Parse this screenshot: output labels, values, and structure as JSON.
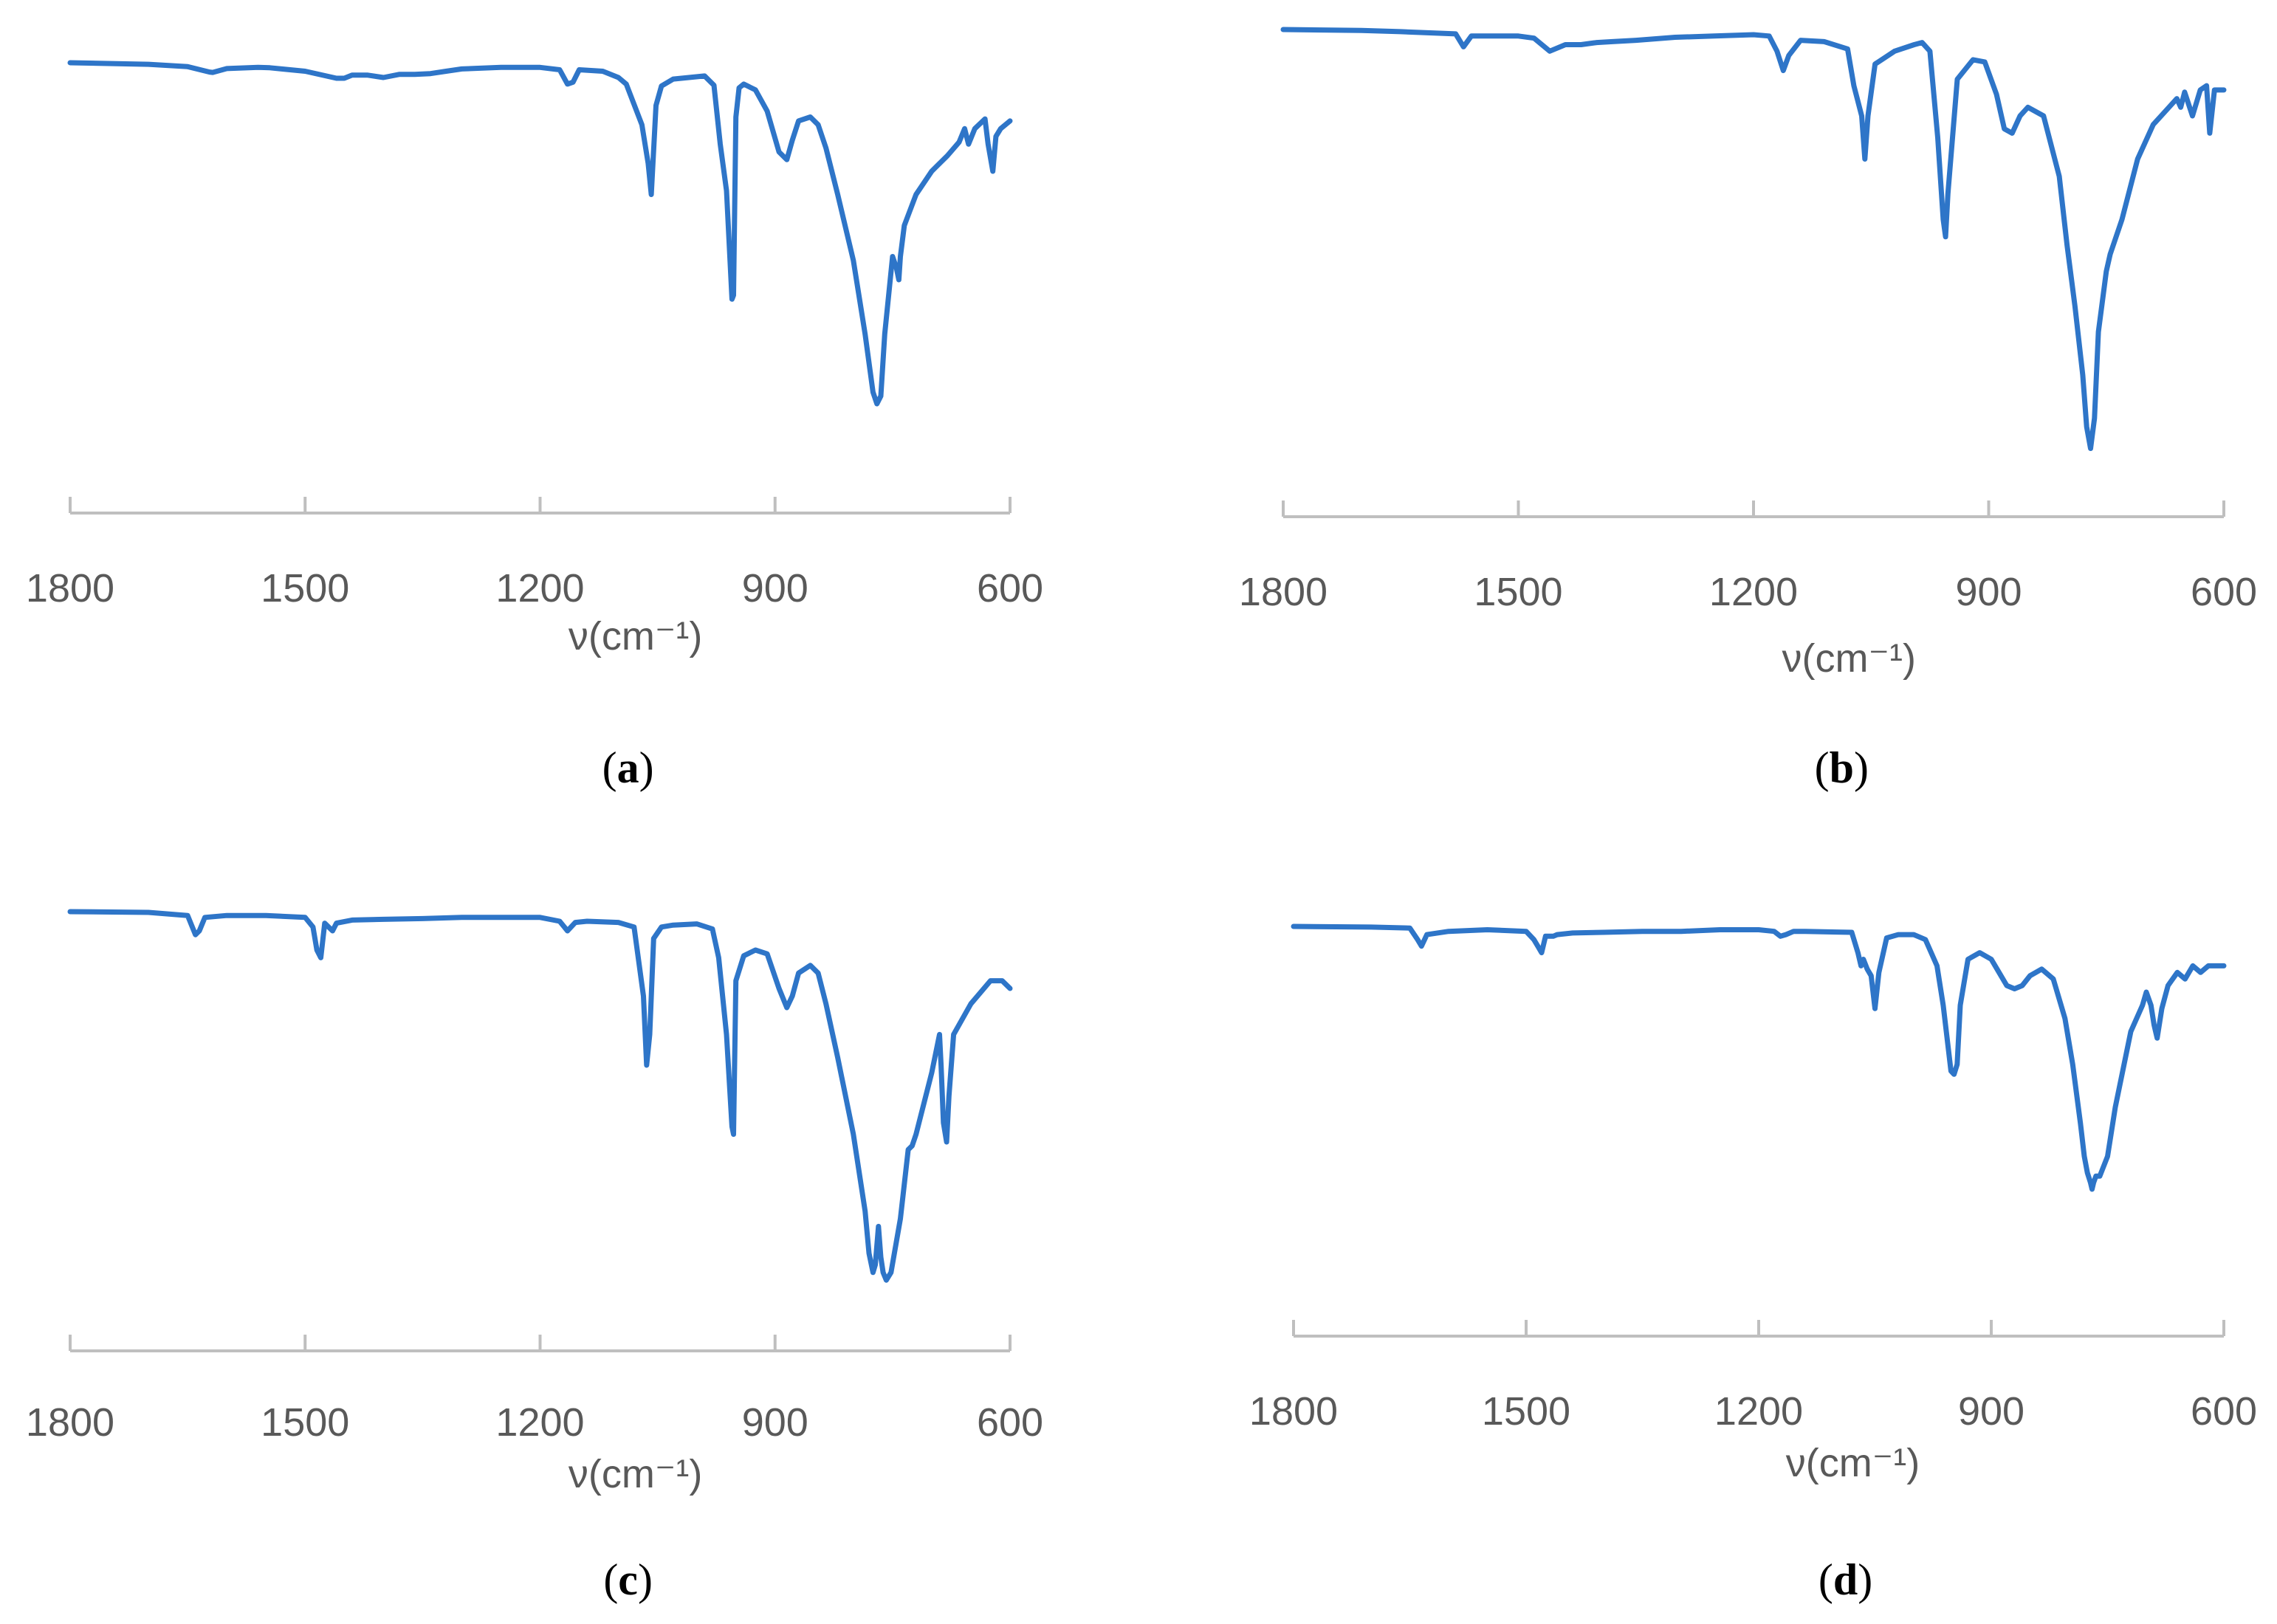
{
  "chart_data": [
    {
      "type": "line",
      "panel_label": "a",
      "xlabel": "ν(cm⁻¹)",
      "xlim": [
        1800,
        600
      ],
      "x_reversed": true,
      "xticks": [
        "1800",
        "1500",
        "1200",
        "900",
        "600"
      ],
      "ylabel": "",
      "grid": false,
      "color": "#2E75C8",
      "series": [
        {
          "x": [
            1800,
            1700,
            1650,
            1622,
            1618,
            1600,
            1560,
            1545,
            1530,
            1500,
            1460,
            1450,
            1440,
            1420,
            1400,
            1380,
            1360,
            1340,
            1320,
            1300,
            1250,
            1200,
            1175,
            1165,
            1158,
            1150,
            1120,
            1100,
            1090,
            1070,
            1062,
            1058,
            1052,
            1045,
            1030,
            1010,
            990,
            978,
            970,
            962,
            955,
            953,
            950,
            946,
            940,
            925,
            910,
            895,
            885,
            878,
            870,
            855,
            845,
            835,
            820,
            800,
            785,
            775,
            770,
            765,
            760,
            750,
            745,
            742,
            740,
            735,
            720,
            700,
            680,
            665,
            658,
            653,
            645,
            632,
            628,
            622,
            618,
            612,
            600
          ],
          "y": [
            1.0,
            0.996,
            0.99,
            0.976,
            0.975,
            0.985,
            0.988,
            0.987,
            0.984,
            0.978,
            0.96,
            0.96,
            0.968,
            0.968,
            0.962,
            0.97,
            0.97,
            0.972,
            0.978,
            0.984,
            0.988,
            0.988,
            0.982,
            0.945,
            0.95,
            0.982,
            0.978,
            0.962,
            0.945,
            0.84,
            0.74,
            0.66,
            0.89,
            0.94,
            0.958,
            0.962,
            0.966,
            0.942,
            0.79,
            0.67,
            0.39,
            0.4,
            0.86,
            0.935,
            0.945,
            0.93,
            0.875,
            0.77,
            0.75,
            0.8,
            0.85,
            0.86,
            0.84,
            0.78,
            0.66,
            0.49,
            0.3,
            0.15,
            0.12,
            0.14,
            0.3,
            0.5,
            0.47,
            0.44,
            0.5,
            0.58,
            0.66,
            0.72,
            0.76,
            0.795,
            0.83,
            0.79,
            0.83,
            0.855,
            0.79,
            0.72,
            0.81,
            0.83,
            0.85
          ]
        }
      ]
    },
    {
      "type": "line",
      "panel_label": "b",
      "xlabel": "ν(cm⁻¹)",
      "xlim": [
        1800,
        600
      ],
      "x_reversed": true,
      "xticks": [
        "1800",
        "1500",
        "1200",
        "900",
        "600"
      ],
      "ylabel": "",
      "grid": false,
      "color": "#2E75C8",
      "series": [
        {
          "x": [
            1800,
            1700,
            1650,
            1580,
            1570,
            1560,
            1500,
            1480,
            1460,
            1440,
            1420,
            1400,
            1380,
            1350,
            1300,
            1250,
            1200,
            1180,
            1170,
            1162,
            1155,
            1140,
            1110,
            1080,
            1072,
            1062,
            1058,
            1054,
            1045,
            1020,
            995,
            985,
            975,
            965,
            958,
            955,
            952,
            940,
            920,
            905,
            890,
            880,
            870,
            860,
            850,
            830,
            810,
            800,
            790,
            780,
            775,
            770,
            765,
            760,
            750,
            745,
            730,
            710,
            690,
            670,
            660,
            655,
            650,
            640,
            630,
            622,
            618,
            612,
            600
          ],
          "y": [
            1.0,
            0.998,
            0.995,
            0.99,
            0.96,
            0.985,
            0.985,
            0.98,
            0.95,
            0.965,
            0.965,
            0.97,
            0.972,
            0.975,
            0.982,
            0.985,
            0.988,
            0.985,
            0.95,
            0.905,
            0.94,
            0.975,
            0.972,
            0.955,
            0.87,
            0.8,
            0.7,
            0.8,
            0.92,
            0.95,
            0.965,
            0.97,
            0.95,
            0.75,
            0.56,
            0.52,
            0.62,
            0.885,
            0.93,
            0.925,
            0.85,
            0.77,
            0.76,
            0.8,
            0.82,
            0.8,
            0.66,
            0.5,
            0.36,
            0.2,
            0.08,
            0.03,
            0.1,
            0.3,
            0.44,
            0.48,
            0.56,
            0.7,
            0.78,
            0.82,
            0.84,
            0.82,
            0.855,
            0.8,
            0.86,
            0.87,
            0.76,
            0.86,
            0.86
          ]
        }
      ]
    },
    {
      "type": "line",
      "panel_label": "c",
      "xlabel": "ν(cm⁻¹)",
      "xlim": [
        1800,
        600
      ],
      "x_reversed": true,
      "xticks": [
        "1800",
        "1500",
        "1200",
        "900",
        "600"
      ],
      "ylabel": "",
      "grid": false,
      "color": "#2E75C8",
      "series": [
        {
          "x": [
            1800,
            1700,
            1650,
            1640,
            1635,
            1628,
            1600,
            1550,
            1500,
            1490,
            1485,
            1480,
            1475,
            1465,
            1460,
            1440,
            1400,
            1350,
            1300,
            1250,
            1200,
            1175,
            1165,
            1155,
            1140,
            1100,
            1080,
            1068,
            1064,
            1060,
            1055,
            1045,
            1030,
            1000,
            980,
            972,
            962,
            955,
            953,
            950,
            940,
            925,
            910,
            895,
            885,
            878,
            870,
            855,
            845,
            835,
            820,
            800,
            785,
            780,
            775,
            772,
            768,
            765,
            762,
            758,
            752,
            740,
            730,
            725,
            720,
            700,
            690,
            688,
            685,
            681,
            678,
            672,
            650,
            625,
            610,
            600
          ],
          "y": [
            1.0,
            0.998,
            0.99,
            0.94,
            0.95,
            0.985,
            0.99,
            0.99,
            0.985,
            0.96,
            0.9,
            0.88,
            0.97,
            0.95,
            0.97,
            0.978,
            0.98,
            0.982,
            0.985,
            0.985,
            0.985,
            0.975,
            0.95,
            0.972,
            0.975,
            0.972,
            0.96,
            0.78,
            0.6,
            0.68,
            0.93,
            0.96,
            0.965,
            0.968,
            0.955,
            0.88,
            0.68,
            0.44,
            0.42,
            0.82,
            0.885,
            0.9,
            0.89,
            0.8,
            0.75,
            0.78,
            0.84,
            0.86,
            0.84,
            0.76,
            0.62,
            0.42,
            0.22,
            0.11,
            0.06,
            0.08,
            0.18,
            0.1,
            0.06,
            0.04,
            0.06,
            0.2,
            0.38,
            0.39,
            0.42,
            0.58,
            0.68,
            0.6,
            0.45,
            0.4,
            0.52,
            0.68,
            0.76,
            0.82,
            0.82,
            0.8
          ]
        }
      ]
    },
    {
      "type": "line",
      "panel_label": "d",
      "xlabel": "ν(cm⁻¹)",
      "xlim": [
        1800,
        600
      ],
      "x_reversed": true,
      "xticks": [
        "1800",
        "1500",
        "1200",
        "900",
        "600"
      ],
      "ylabel": "",
      "grid": false,
      "color": "#2E75C8",
      "series": [
        {
          "x": [
            1800,
            1700,
            1650,
            1640,
            1635,
            1628,
            1600,
            1550,
            1500,
            1490,
            1485,
            1480,
            1475,
            1465,
            1460,
            1440,
            1400,
            1350,
            1300,
            1250,
            1200,
            1180,
            1172,
            1165,
            1155,
            1140,
            1100,
            1080,
            1072,
            1068,
            1065,
            1060,
            1055,
            1050,
            1045,
            1035,
            1020,
            1000,
            985,
            970,
            962,
            952,
            948,
            944,
            940,
            930,
            915,
            900,
            890,
            880,
            870,
            860,
            850,
            835,
            820,
            805,
            795,
            785,
            780,
            776,
            772,
            770,
            768,
            765,
            760,
            750,
            740,
            720,
            705,
            700,
            694,
            690,
            686,
            680,
            672,
            660,
            650,
            640,
            630,
            620,
            600
          ],
          "y": [
            1.0,
            0.998,
            0.995,
            0.96,
            0.94,
            0.975,
            0.985,
            0.99,
            0.985,
            0.96,
            0.94,
            0.92,
            0.97,
            0.97,
            0.975,
            0.98,
            0.982,
            0.985,
            0.985,
            0.99,
            0.99,
            0.985,
            0.97,
            0.975,
            0.985,
            0.985,
            0.983,
            0.982,
            0.92,
            0.88,
            0.9,
            0.87,
            0.85,
            0.75,
            0.86,
            0.965,
            0.975,
            0.975,
            0.96,
            0.88,
            0.76,
            0.56,
            0.55,
            0.58,
            0.76,
            0.9,
            0.92,
            0.9,
            0.86,
            0.82,
            0.81,
            0.82,
            0.85,
            0.87,
            0.84,
            0.72,
            0.58,
            0.4,
            0.3,
            0.25,
            0.22,
            0.2,
            0.22,
            0.24,
            0.24,
            0.3,
            0.45,
            0.68,
            0.76,
            0.8,
            0.76,
            0.7,
            0.66,
            0.75,
            0.82,
            0.86,
            0.84,
            0.88,
            0.86,
            0.88,
            0.88
          ]
        }
      ]
    }
  ]
}
